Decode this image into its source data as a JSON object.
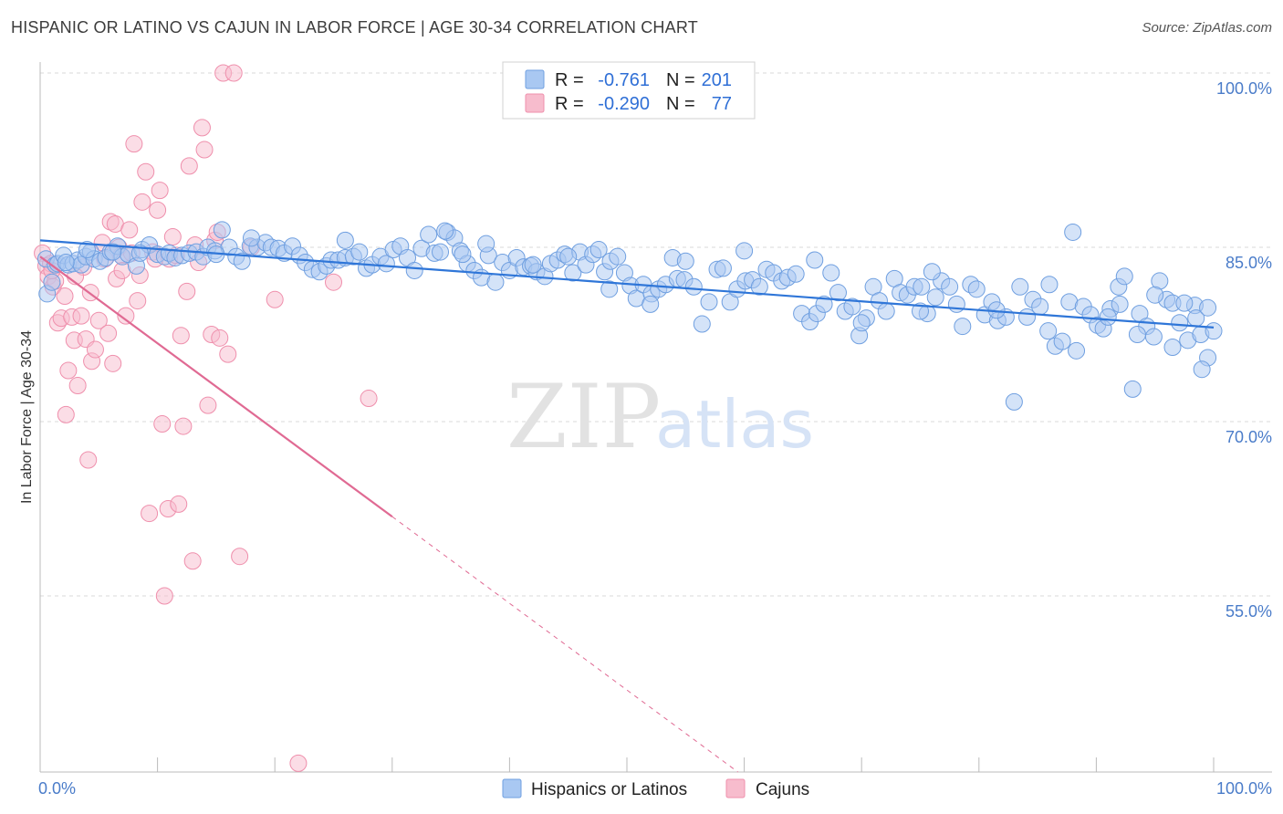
{
  "title": "HISPANIC OR LATINO VS CAJUN IN LABOR FORCE | AGE 30-34 CORRELATION CHART",
  "source": "Source: ZipAtlas.com",
  "watermark": {
    "zip": "ZIP",
    "atlas": "atlas"
  },
  "colors": {
    "blue_fill": "#a9c8f2",
    "blue_stroke": "#6f9fe0",
    "blue_line": "#2f76d8",
    "pink_fill": "#f7bccd",
    "pink_stroke": "#ef8fac",
    "pink_line": "#e06a93",
    "grid": "#d8d8d8",
    "tick_label": "#4a7cc9"
  },
  "legend": {
    "r_label": "R =",
    "n_label": "N =",
    "entries": [
      {
        "r": "-0.761",
        "n": "201",
        "color": "blue"
      },
      {
        "r": "-0.290",
        "n": "77",
        "color": "pink"
      }
    ]
  },
  "bottom_legend": [
    "Hispanics or Latinos",
    "Cajuns"
  ],
  "chart_data": {
    "type": "scatter",
    "title": "HISPANIC OR LATINO VS CAJUN IN LABOR FORCE | AGE 30-34 CORRELATION CHART",
    "xlabel": "",
    "ylabel": "In Labor Force | Age 30-34",
    "xlim": [
      0,
      100
    ],
    "ylim": [
      40,
      101.5
    ],
    "x_tick_labels": [
      "0.0%",
      "100.0%"
    ],
    "y_ticks": [
      100,
      85,
      70,
      55
    ],
    "y_tick_labels": [
      "100.0%",
      "85.0%",
      "70.0%",
      "55.0%"
    ],
    "grid": "horizontal dashed",
    "legend_position": "top-center",
    "series": [
      {
        "name": "Hispanics or Latinos",
        "color": "blue",
        "trend": {
          "x": [
            0,
            100
          ],
          "y": [
            85.6,
            78.1
          ],
          "solid_until": 100
        },
        "points": [
          [
            0.5,
            84.0
          ],
          [
            0.6,
            81.0
          ],
          [
            1.0,
            82.0
          ],
          [
            1.3,
            83.5
          ],
          [
            1.5,
            83.6
          ],
          [
            2.0,
            84.3
          ],
          [
            2.4,
            83.5
          ],
          [
            2.8,
            83.6
          ],
          [
            3.2,
            83.9
          ],
          [
            3.5,
            83.5
          ],
          [
            3.9,
            84.2
          ],
          [
            4.3,
            84.6
          ],
          [
            4.6,
            84.0
          ],
          [
            5.1,
            83.8
          ],
          [
            5.6,
            84.1
          ],
          [
            6.0,
            84.6
          ],
          [
            6.6,
            85.1
          ],
          [
            7.0,
            84.2
          ],
          [
            7.5,
            84.4
          ],
          [
            8.2,
            83.4
          ],
          [
            8.7,
            84.8
          ],
          [
            9.3,
            85.2
          ],
          [
            10.0,
            84.4
          ],
          [
            10.6,
            84.2
          ],
          [
            11.0,
            84.5
          ],
          [
            11.5,
            84.1
          ],
          [
            12.1,
            84.3
          ],
          [
            12.7,
            84.5
          ],
          [
            13.3,
            84.6
          ],
          [
            13.9,
            84.2
          ],
          [
            14.3,
            85.0
          ],
          [
            14.9,
            84.7
          ],
          [
            15.5,
            86.5
          ],
          [
            16.1,
            85.0
          ],
          [
            16.7,
            84.2
          ],
          [
            17.2,
            83.8
          ],
          [
            17.9,
            85.1
          ],
          [
            18.5,
            85.0
          ],
          [
            19.2,
            85.4
          ],
          [
            19.7,
            85.0
          ],
          [
            20.3,
            84.9
          ],
          [
            20.8,
            84.5
          ],
          [
            21.5,
            85.1
          ],
          [
            22.1,
            84.3
          ],
          [
            22.6,
            83.7
          ],
          [
            23.2,
            83.1
          ],
          [
            23.8,
            82.9
          ],
          [
            24.4,
            83.4
          ],
          [
            24.8,
            83.9
          ],
          [
            25.4,
            83.9
          ],
          [
            26.0,
            84.1
          ],
          [
            26.7,
            84.2
          ],
          [
            27.2,
            84.6
          ],
          [
            27.8,
            83.2
          ],
          [
            28.3,
            83.5
          ],
          [
            29.0,
            84.2
          ],
          [
            29.5,
            83.6
          ],
          [
            30.1,
            84.8
          ],
          [
            30.7,
            85.1
          ],
          [
            31.3,
            84.1
          ],
          [
            31.9,
            83.0
          ],
          [
            32.5,
            84.9
          ],
          [
            33.1,
            86.1
          ],
          [
            33.6,
            84.5
          ],
          [
            34.1,
            84.6
          ],
          [
            34.7,
            86.3
          ],
          [
            35.3,
            85.8
          ],
          [
            35.8,
            84.7
          ],
          [
            36.4,
            83.6
          ],
          [
            37.0,
            83.0
          ],
          [
            37.6,
            82.4
          ],
          [
            38.2,
            84.3
          ],
          [
            38.8,
            82.0
          ],
          [
            39.4,
            83.7
          ],
          [
            40.0,
            83.0
          ],
          [
            40.6,
            84.1
          ],
          [
            41.2,
            83.3
          ],
          [
            41.8,
            83.4
          ],
          [
            42.3,
            82.9
          ],
          [
            43.0,
            82.5
          ],
          [
            43.5,
            83.6
          ],
          [
            44.1,
            83.9
          ],
          [
            44.7,
            84.4
          ],
          [
            45.4,
            82.8
          ],
          [
            46.0,
            84.6
          ],
          [
            46.5,
            83.5
          ],
          [
            47.1,
            84.4
          ],
          [
            47.6,
            84.8
          ],
          [
            48.1,
            82.9
          ],
          [
            48.6,
            83.8
          ],
          [
            49.2,
            84.2
          ],
          [
            49.8,
            82.8
          ],
          [
            50.3,
            81.7
          ],
          [
            50.8,
            80.6
          ],
          [
            51.4,
            81.8
          ],
          [
            52.1,
            81.0
          ],
          [
            52.7,
            81.4
          ],
          [
            53.3,
            81.8
          ],
          [
            53.9,
            84.1
          ],
          [
            54.3,
            82.3
          ],
          [
            54.9,
            82.2
          ],
          [
            55.7,
            81.6
          ],
          [
            56.4,
            78.4
          ],
          [
            57.0,
            80.3
          ],
          [
            57.7,
            83.1
          ],
          [
            58.2,
            83.2
          ],
          [
            58.8,
            80.3
          ],
          [
            59.4,
            81.4
          ],
          [
            60.1,
            82.1
          ],
          [
            60.7,
            82.2
          ],
          [
            61.3,
            81.6
          ],
          [
            61.9,
            83.1
          ],
          [
            62.5,
            82.8
          ],
          [
            63.2,
            82.1
          ],
          [
            63.7,
            82.4
          ],
          [
            64.4,
            82.7
          ],
          [
            64.9,
            79.3
          ],
          [
            65.6,
            78.6
          ],
          [
            66.2,
            79.3
          ],
          [
            66.8,
            80.1
          ],
          [
            67.4,
            82.8
          ],
          [
            68.0,
            81.1
          ],
          [
            68.6,
            79.5
          ],
          [
            69.2,
            79.9
          ],
          [
            69.8,
            77.4
          ],
          [
            70.4,
            78.9
          ],
          [
            71.0,
            81.6
          ],
          [
            71.5,
            80.4
          ],
          [
            72.1,
            79.5
          ],
          [
            72.8,
            82.3
          ],
          [
            73.3,
            81.1
          ],
          [
            73.9,
            80.9
          ],
          [
            74.5,
            81.6
          ],
          [
            75.1,
            81.6
          ],
          [
            75.6,
            79.3
          ],
          [
            76.3,
            80.7
          ],
          [
            76.8,
            82.1
          ],
          [
            77.5,
            81.6
          ],
          [
            78.1,
            80.1
          ],
          [
            78.6,
            78.2
          ],
          [
            79.3,
            81.8
          ],
          [
            79.8,
            81.4
          ],
          [
            80.5,
            79.2
          ],
          [
            81.1,
            80.3
          ],
          [
            81.6,
            78.7
          ],
          [
            82.3,
            79.0
          ],
          [
            83.0,
            71.7
          ],
          [
            83.5,
            81.6
          ],
          [
            84.1,
            79.0
          ],
          [
            84.6,
            80.5
          ],
          [
            85.2,
            79.9
          ],
          [
            85.9,
            77.8
          ],
          [
            86.5,
            76.5
          ],
          [
            87.1,
            76.9
          ],
          [
            87.7,
            80.3
          ],
          [
            88.3,
            76.1
          ],
          [
            88.9,
            79.9
          ],
          [
            89.5,
            79.2
          ],
          [
            90.1,
            78.3
          ],
          [
            90.6,
            78.0
          ],
          [
            91.2,
            79.7
          ],
          [
            91.9,
            81.6
          ],
          [
            92.4,
            82.5
          ],
          [
            93.1,
            72.8
          ],
          [
            93.7,
            79.3
          ],
          [
            94.3,
            78.2
          ],
          [
            94.9,
            77.3
          ],
          [
            95.4,
            82.1
          ],
          [
            96.0,
            80.5
          ],
          [
            96.5,
            76.4
          ],
          [
            97.1,
            78.5
          ],
          [
            97.8,
            77.0
          ],
          [
            98.4,
            80.0
          ],
          [
            98.9,
            77.5
          ],
          [
            99.5,
            75.5
          ],
          [
            100.0,
            77.8
          ],
          [
            81.5,
            79.6
          ],
          [
            86.0,
            81.8
          ],
          [
            91.0,
            79.0
          ],
          [
            92.0,
            80.1
          ],
          [
            93.5,
            77.5
          ],
          [
            95.0,
            80.9
          ],
          [
            96.5,
            80.2
          ],
          [
            97.5,
            80.2
          ],
          [
            98.5,
            78.9
          ],
          [
            99.0,
            74.5
          ],
          [
            99.5,
            79.8
          ],
          [
            88.0,
            86.3
          ],
          [
            75.0,
            79.5
          ],
          [
            76.0,
            82.9
          ],
          [
            70.0,
            78.5
          ],
          [
            66.0,
            83.9
          ],
          [
            60.0,
            84.7
          ],
          [
            55.0,
            83.8
          ],
          [
            52.0,
            80.1
          ],
          [
            48.5,
            81.4
          ],
          [
            45.0,
            84.2
          ],
          [
            42.0,
            83.5
          ],
          [
            38.0,
            85.3
          ],
          [
            36.0,
            84.4
          ],
          [
            34.5,
            86.4
          ],
          [
            26.0,
            85.6
          ],
          [
            18.0,
            85.8
          ],
          [
            15.0,
            84.4
          ],
          [
            8.5,
            84.5
          ],
          [
            6.2,
            84.6
          ],
          [
            4.0,
            84.8
          ],
          [
            2.2,
            83.7
          ]
        ]
      },
      {
        "name": "Cajuns",
        "color": "pink",
        "trend": {
          "x": [
            0,
            100
          ],
          "y": [
            84.2,
            9.6
          ],
          "solid_until": 30
        },
        "points": [
          [
            0.2,
            84.5
          ],
          [
            0.5,
            83.4
          ],
          [
            0.7,
            82.5
          ],
          [
            0.9,
            83.6
          ],
          [
            1.1,
            81.6
          ],
          [
            1.3,
            82.1
          ],
          [
            1.5,
            78.5
          ],
          [
            1.8,
            78.9
          ],
          [
            2.1,
            80.8
          ],
          [
            2.2,
            70.6
          ],
          [
            2.4,
            74.4
          ],
          [
            2.7,
            79.0
          ],
          [
            2.9,
            77.0
          ],
          [
            3.2,
            73.1
          ],
          [
            3.5,
            79.1
          ],
          [
            3.7,
            83.3
          ],
          [
            3.9,
            77.1
          ],
          [
            4.1,
            66.7
          ],
          [
            4.3,
            81.1
          ],
          [
            4.4,
            75.2
          ],
          [
            4.7,
            76.2
          ],
          [
            5.0,
            78.7
          ],
          [
            5.3,
            85.4
          ],
          [
            5.5,
            84.0
          ],
          [
            5.8,
            77.6
          ],
          [
            6.0,
            87.2
          ],
          [
            6.2,
            75.0
          ],
          [
            6.4,
            87.0
          ],
          [
            6.5,
            82.3
          ],
          [
            6.7,
            85.0
          ],
          [
            6.9,
            84.3
          ],
          [
            7.0,
            83.0
          ],
          [
            7.3,
            79.1
          ],
          [
            7.6,
            86.5
          ],
          [
            7.8,
            84.5
          ],
          [
            8.0,
            93.9
          ],
          [
            8.3,
            80.4
          ],
          [
            8.5,
            82.6
          ],
          [
            8.7,
            88.9
          ],
          [
            9.0,
            91.5
          ],
          [
            9.3,
            62.1
          ],
          [
            9.6,
            84.6
          ],
          [
            9.8,
            84.0
          ],
          [
            10.0,
            88.2
          ],
          [
            10.2,
            89.9
          ],
          [
            10.4,
            69.8
          ],
          [
            10.6,
            55.0
          ],
          [
            10.9,
            62.5
          ],
          [
            11.0,
            84.0
          ],
          [
            11.3,
            85.9
          ],
          [
            11.6,
            84.3
          ],
          [
            11.8,
            62.9
          ],
          [
            12.0,
            77.4
          ],
          [
            12.2,
            69.6
          ],
          [
            12.5,
            81.2
          ],
          [
            12.7,
            92.0
          ],
          [
            13.0,
            58.0
          ],
          [
            13.2,
            85.2
          ],
          [
            13.5,
            83.7
          ],
          [
            13.8,
            95.3
          ],
          [
            14.0,
            93.4
          ],
          [
            14.3,
            71.4
          ],
          [
            14.6,
            77.5
          ],
          [
            14.9,
            85.6
          ],
          [
            15.1,
            86.3
          ],
          [
            15.3,
            77.2
          ],
          [
            15.6,
            100.0
          ],
          [
            16.0,
            75.8
          ],
          [
            16.5,
            100.0
          ],
          [
            17.0,
            58.4
          ],
          [
            18.0,
            85.0
          ],
          [
            20.0,
            80.5
          ],
          [
            22.0,
            40.6
          ],
          [
            25.0,
            82.0
          ],
          [
            28.0,
            72.0
          ],
          [
            1.0,
            83.0
          ],
          [
            3.0,
            82.5
          ]
        ]
      }
    ]
  }
}
